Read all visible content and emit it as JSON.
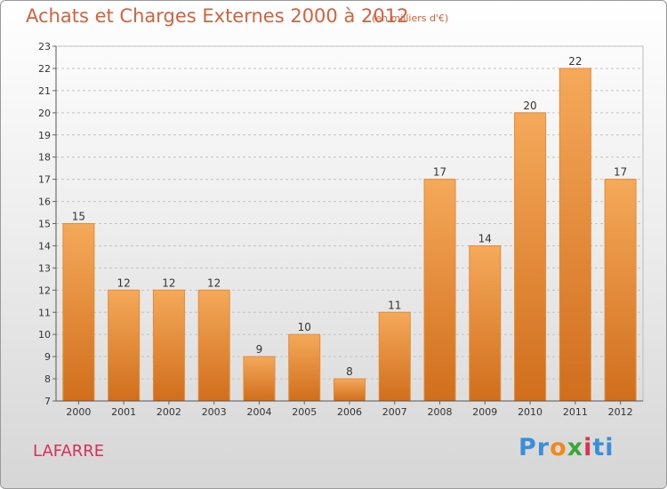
{
  "title": "Achats et Charges Externes 2000 à 2012",
  "unit_note": "(en milliers d'€)",
  "commune": "LAFARRE",
  "logo": {
    "text": "Proxiti",
    "letters": [
      "P",
      "r",
      "o",
      "x",
      "i",
      "t",
      "i"
    ],
    "colors": [
      "#3a8fd8",
      "#3a8fd8",
      "#f08a1c",
      "#3aa83a",
      "#d8344c",
      "#3a8fd8",
      "#3a8fd8"
    ]
  },
  "colors": {
    "bar_light": "#f5a95a",
    "bar_dark": "#d06e1c",
    "title": "#d9603a",
    "commune": "#d6305a"
  },
  "chart_data": {
    "type": "bar",
    "categories": [
      "2000",
      "2001",
      "2002",
      "2003",
      "2004",
      "2005",
      "2006",
      "2007",
      "2008",
      "2009",
      "2010",
      "2011",
      "2012"
    ],
    "values": [
      15,
      12,
      12,
      12,
      9,
      10,
      8,
      11,
      17,
      14,
      20,
      22,
      17
    ],
    "ylim": [
      7,
      23
    ],
    "yticks": [
      7,
      8,
      9,
      10,
      11,
      12,
      13,
      14,
      15,
      16,
      17,
      18,
      19,
      20,
      21,
      22,
      23
    ],
    "grid": true,
    "data_labels": true
  }
}
